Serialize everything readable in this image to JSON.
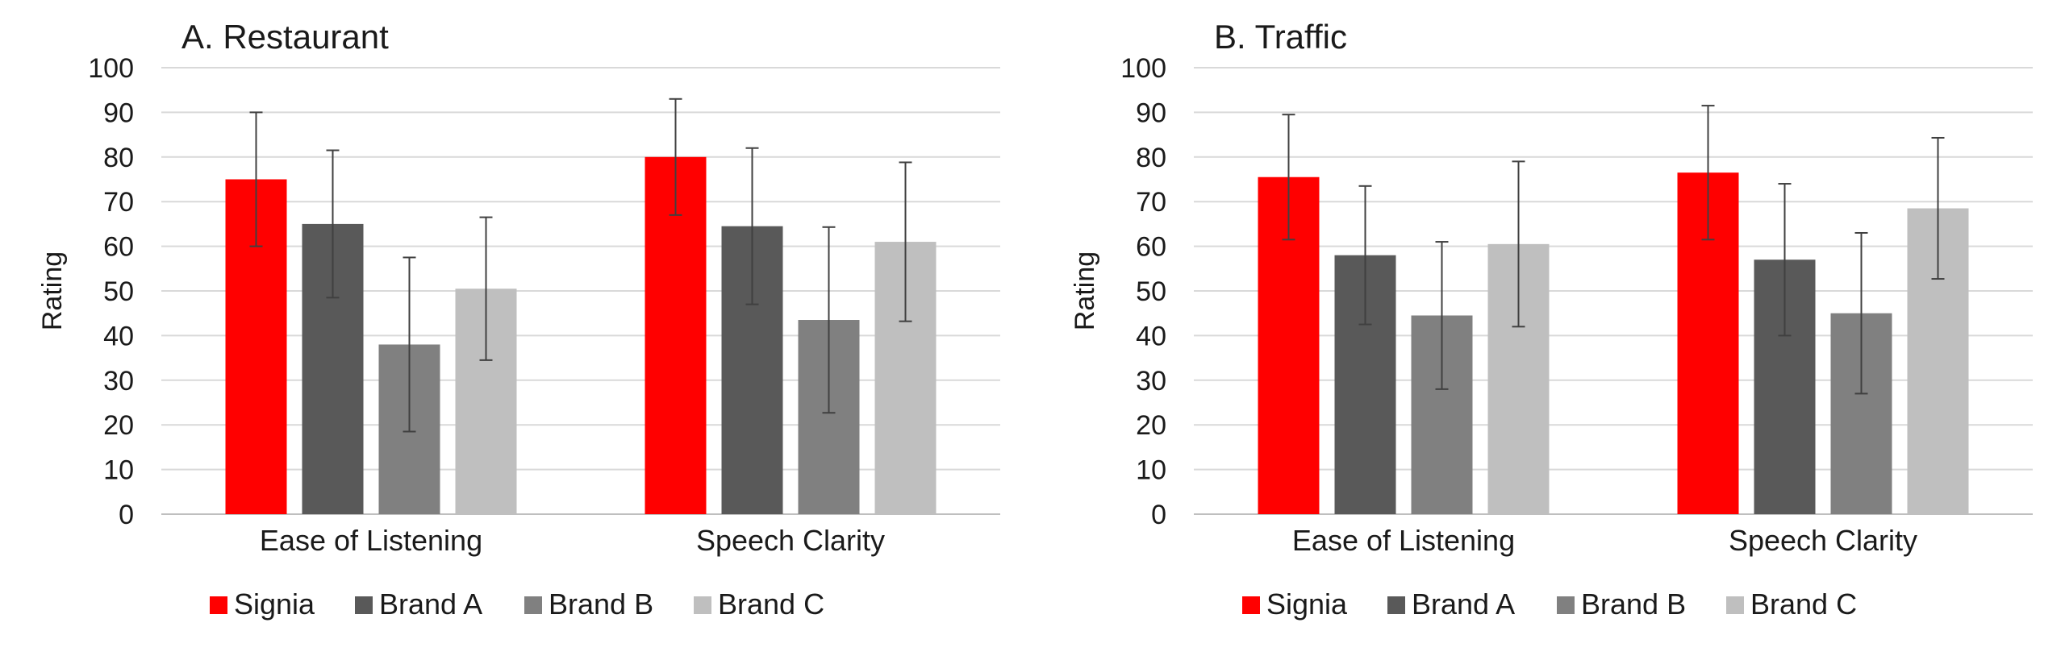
{
  "chart_data": [
    {
      "type": "bar",
      "title": "A. Restaurant",
      "xlabel": "",
      "ylabel": "Rating",
      "ylim": [
        0,
        100
      ],
      "yticks": [
        0,
        10,
        20,
        30,
        40,
        50,
        60,
        70,
        80,
        90,
        100
      ],
      "grid": true,
      "legend_position": "bottom",
      "categories": [
        "Ease of Listening",
        "Speech Clarity"
      ],
      "series": [
        {
          "name": "Signia",
          "color": "#ff0000",
          "values": [
            75,
            80
          ],
          "error": [
            15,
            13
          ]
        },
        {
          "name": "Brand A",
          "color": "#595959",
          "values": [
            65,
            64.5
          ],
          "error": [
            16.5,
            17.5
          ]
        },
        {
          "name": "Brand B",
          "color": "#808080",
          "values": [
            38,
            43.5
          ],
          "error": [
            19.5,
            20.8
          ]
        },
        {
          "name": "Brand C",
          "color": "#bfbfbf",
          "values": [
            50.5,
            61
          ],
          "error": [
            16,
            17.8
          ]
        }
      ]
    },
    {
      "type": "bar",
      "title": "B. Traffic",
      "xlabel": "",
      "ylabel": "Rating",
      "ylim": [
        0,
        100
      ],
      "yticks": [
        0,
        10,
        20,
        30,
        40,
        50,
        60,
        70,
        80,
        90,
        100
      ],
      "grid": true,
      "legend_position": "bottom",
      "categories": [
        "Ease of Listening",
        "Speech Clarity"
      ],
      "series": [
        {
          "name": "Signia",
          "color": "#ff0000",
          "values": [
            75.5,
            76.5
          ],
          "error": [
            14,
            15
          ]
        },
        {
          "name": "Brand A",
          "color": "#595959",
          "values": [
            58,
            57
          ],
          "error": [
            15.5,
            17
          ]
        },
        {
          "name": "Brand B",
          "color": "#808080",
          "values": [
            44.5,
            45
          ],
          "error": [
            16.5,
            18
          ]
        },
        {
          "name": "Brand C",
          "color": "#bfbfbf",
          "values": [
            60.5,
            68.5
          ],
          "error": [
            18.5,
            15.8
          ]
        }
      ]
    }
  ]
}
